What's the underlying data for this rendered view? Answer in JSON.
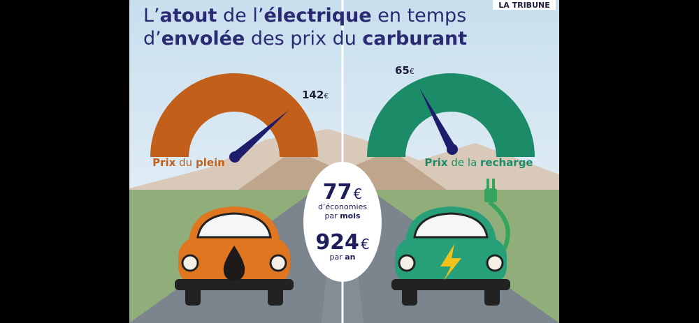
{
  "brand": "LA TRIBUNE",
  "title": [
    [
      {
        "t": "L’",
        "b": false
      },
      {
        "t": "atout",
        "b": true
      },
      {
        "t": " de l’",
        "b": false
      },
      {
        "t": "électrique",
        "b": true
      },
      {
        "t": " en temps",
        "b": false
      }
    ],
    [
      {
        "t": "d’",
        "b": false
      },
      {
        "t": "envolée",
        "b": true
      },
      {
        "t": " des prix du ",
        "b": false
      },
      {
        "t": "carburant",
        "b": true
      }
    ]
  ],
  "gauges": [
    {
      "label": [
        {
          "t": "Prix",
          "b": true
        },
        {
          "t": " du ",
          "b": false
        },
        {
          "t": "plein",
          "b": true
        }
      ],
      "value": 142,
      "unit": "€",
      "color": "#c2601b"
    },
    {
      "label": [
        {
          "t": "Prix",
          "b": true
        },
        {
          "t": " de la ",
          "b": false
        },
        {
          "t": "recharge",
          "b": true
        }
      ],
      "value": 65,
      "unit": "€",
      "color": "#1c8c68"
    }
  ],
  "savings": [
    {
      "value": 77,
      "unit": "€",
      "lines": [
        [
          {
            "t": "d’économies",
            "b": false
          }
        ],
        [
          {
            "t": "par ",
            "b": false
          },
          {
            "t": "mois",
            "b": true
          }
        ]
      ]
    },
    {
      "value": 924,
      "unit": "€",
      "lines": [
        [
          {
            "t": "par ",
            "b": false
          },
          {
            "t": "an",
            "b": true
          }
        ]
      ]
    }
  ]
}
